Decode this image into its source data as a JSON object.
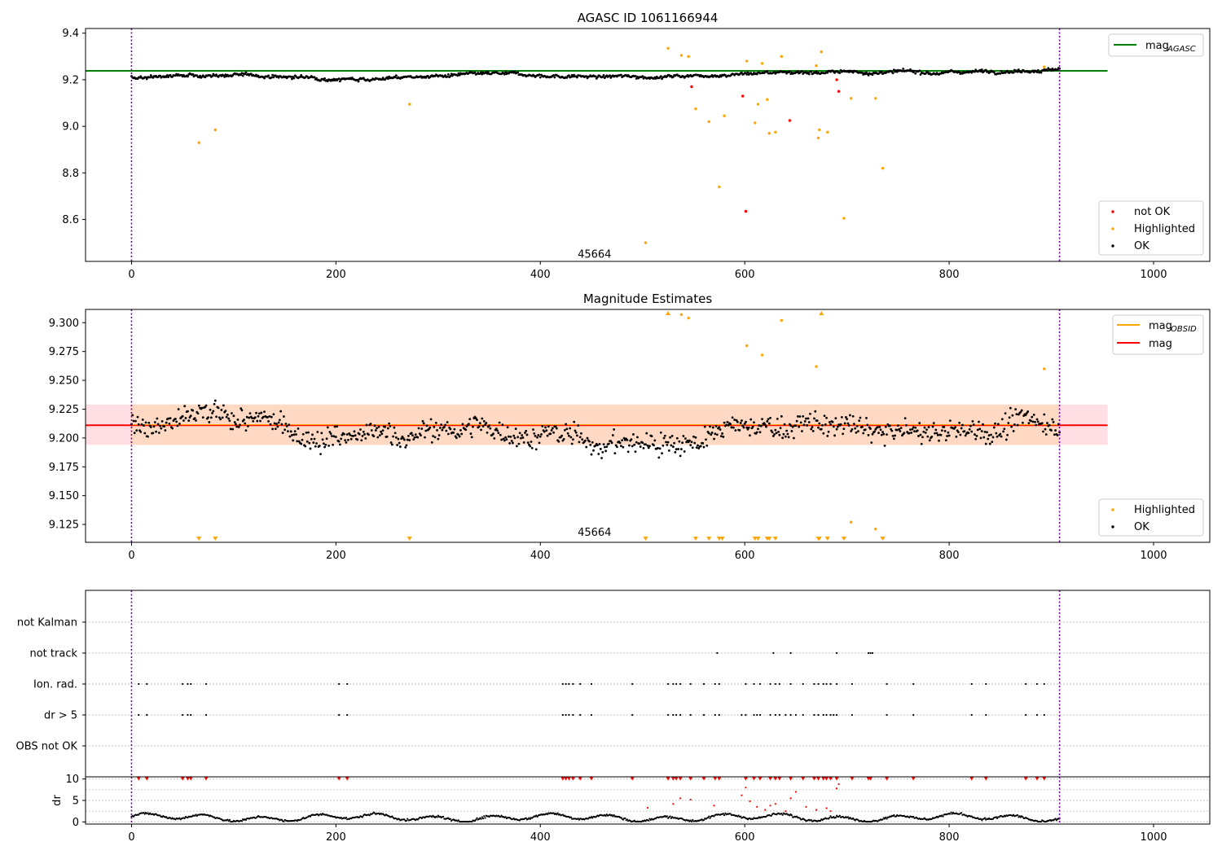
{
  "figure_title": "AGASC ID 1061166944",
  "chart_data": [
    {
      "id": "panel1",
      "type": "scatter",
      "title": "AGASC ID 1061166944",
      "xlim": [
        -45,
        1055
      ],
      "ylim": [
        8.42,
        9.42
      ],
      "xticks": [
        0,
        200,
        400,
        600,
        800,
        1000
      ],
      "yticks": [
        "8.6",
        "8.8",
        "9.0",
        "9.2",
        "9.4"
      ],
      "annotation": {
        "text": "45664",
        "x": 453,
        "y": 8.45
      },
      "vlines": [
        0,
        908
      ],
      "hlines": [
        {
          "y": 9.238,
          "x0": -45,
          "x1": 955,
          "color": "#008000"
        }
      ],
      "legend_lines": [
        {
          "label_main": "mag",
          "label_sub": "AGASC",
          "color": "#008000"
        }
      ],
      "legend_points": [
        {
          "label": "not OK",
          "color": "#ff0000"
        },
        {
          "label": "Highlighted",
          "color": "#ffa500"
        },
        {
          "label": "OK",
          "color": "#000000"
        }
      ],
      "highlighted": [
        [
          66,
          8.93
        ],
        [
          82,
          8.985
        ],
        [
          272,
          9.095
        ],
        [
          503,
          8.5
        ],
        [
          525,
          9.335
        ],
        [
          538,
          9.305
        ],
        [
          545,
          9.3
        ],
        [
          552,
          9.075
        ],
        [
          565,
          9.02
        ],
        [
          575,
          8.74
        ],
        [
          580,
          9.045
        ],
        [
          602,
          9.28
        ],
        [
          610,
          9.015
        ],
        [
          613,
          9.095
        ],
        [
          617,
          9.27
        ],
        [
          622,
          9.115
        ],
        [
          624,
          8.97
        ],
        [
          630,
          8.975
        ],
        [
          636,
          9.3
        ],
        [
          670,
          9.26
        ],
        [
          672,
          8.95
        ],
        [
          673,
          8.985
        ],
        [
          675,
          9.32
        ],
        [
          681,
          8.975
        ],
        [
          697,
          8.605
        ],
        [
          704,
          9.12
        ],
        [
          728,
          9.12
        ],
        [
          735,
          8.82
        ],
        [
          893,
          9.255
        ]
      ],
      "not_ok": [
        [
          548,
          9.17
        ],
        [
          598,
          9.13
        ],
        [
          601,
          8.635
        ],
        [
          644,
          9.025
        ],
        [
          690,
          9.2
        ],
        [
          692,
          9.15
        ]
      ],
      "ok_series": {
        "x_start": 0,
        "x_end": 908,
        "base": 9.205,
        "end": 9.238
      }
    },
    {
      "id": "panel2",
      "type": "scatter",
      "title": "Magnitude Estimates",
      "xlim": [
        -45,
        1055
      ],
      "ylim": [
        9.1095,
        9.3115
      ],
      "xticks": [
        0,
        200,
        400,
        600,
        800,
        1000
      ],
      "yticks": [
        "9.125",
        "9.150",
        "9.175",
        "9.200",
        "9.225",
        "9.250",
        "9.275",
        "9.300"
      ],
      "annotation": {
        "text": "45664",
        "x": 453,
        "y": 9.118
      },
      "vlines": [
        0,
        908
      ],
      "band": {
        "y0": 9.194,
        "y1": 9.229,
        "x0": -45,
        "x1": 955
      },
      "hlines": [
        {
          "y": 9.211,
          "x0": -45,
          "x1": 955,
          "color": "#ff0000"
        }
      ],
      "legend_lines": [
        {
          "label_main": "mag",
          "label_sub": "OBSID",
          "color": "#ffa500"
        },
        {
          "label_main": "mag",
          "label_sub": "",
          "color": "#ff0000"
        }
      ],
      "legend_points": [
        {
          "label": "Highlighted",
          "color": "#ffa500"
        },
        {
          "label": "OK",
          "color": "#000000"
        }
      ],
      "highlighted": [
        [
          538,
          9.307
        ],
        [
          545,
          9.304
        ],
        [
          602,
          9.28
        ],
        [
          617,
          9.272
        ],
        [
          636,
          9.302
        ],
        [
          670,
          9.262
        ],
        [
          704,
          9.127
        ],
        [
          728,
          9.121
        ],
        [
          893,
          9.26
        ]
      ],
      "markers_low": [
        66,
        82,
        272,
        503,
        552,
        565,
        575,
        578,
        610,
        613,
        622,
        624,
        630,
        672,
        673,
        681,
        697,
        735
      ],
      "markers_high": [
        525,
        675
      ],
      "ok_series": {
        "x_start": 0,
        "x_end": 908,
        "base": 9.205
      }
    },
    {
      "id": "panel3",
      "type": "event-flags",
      "xlim": [
        -45,
        1055
      ],
      "vlines": [
        0,
        908
      ],
      "rows": [
        "not Kalman",
        "not track",
        "Ion. rad.",
        "dr > 5",
        "OBS not OK"
      ],
      "events": {
        "not track": [
          573,
          628,
          645,
          690,
          721,
          723,
          725
        ],
        "Ion. rad.": [
          7,
          15,
          50,
          55,
          58,
          73,
          203,
          211,
          422,
          425,
          428,
          432,
          439,
          450,
          490,
          525,
          530,
          533,
          537,
          547,
          560,
          571,
          575,
          601,
          609,
          615,
          625,
          630,
          634,
          645,
          657,
          668,
          672,
          677,
          680,
          684,
          690,
          705,
          739,
          765,
          822,
          836,
          875,
          886,
          893
        ],
        "dr > 5": [
          7,
          15,
          50,
          55,
          58,
          73,
          203,
          211,
          422,
          425,
          428,
          432,
          439,
          450,
          490,
          525,
          530,
          533,
          537,
          547,
          560,
          571,
          575,
          597,
          601,
          609,
          612,
          615,
          625,
          630,
          634,
          640,
          645,
          650,
          657,
          668,
          672,
          677,
          680,
          684,
          687,
          690,
          705,
          739,
          765,
          822,
          836,
          875,
          886,
          893
        ]
      }
    },
    {
      "id": "panel4",
      "type": "scatter",
      "xlim": [
        -45,
        1055
      ],
      "ylim": [
        -0.5,
        10.5
      ],
      "xticks": [
        0,
        200,
        400,
        600,
        800,
        1000
      ],
      "yticks": [
        "0",
        "5",
        "10"
      ],
      "ylabel": "dr",
      "vlines": [
        0,
        908
      ],
      "capped_at_10": [
        7,
        15,
        50,
        55,
        58,
        73,
        203,
        211,
        422,
        425,
        428,
        432,
        439,
        450,
        490,
        525,
        530,
        533,
        537,
        547,
        560,
        571,
        575,
        601,
        609,
        615,
        625,
        630,
        634,
        645,
        657,
        668,
        672,
        677,
        680,
        684,
        690,
        705,
        721,
        723,
        739,
        765,
        822,
        836,
        875,
        886,
        893
      ],
      "outliers": [
        [
          505,
          3.3
        ],
        [
          530,
          4.2
        ],
        [
          537,
          5.5
        ],
        [
          547,
          5.2
        ],
        [
          570,
          3.8
        ],
        [
          597,
          6.2
        ],
        [
          601,
          8.0
        ],
        [
          605,
          4.8
        ],
        [
          612,
          3.5
        ],
        [
          620,
          2.8
        ],
        [
          625,
          3.8
        ],
        [
          630,
          4.2
        ],
        [
          640,
          2.5
        ],
        [
          645,
          5.5
        ],
        [
          650,
          7.0
        ],
        [
          660,
          3.5
        ],
        [
          670,
          2.8
        ],
        [
          680,
          3.2
        ],
        [
          684,
          2.5
        ],
        [
          690,
          7.8
        ],
        [
          692,
          8.8
        ]
      ],
      "ok_series": {
        "x_start": 0,
        "x_end": 908,
        "base": 1.0
      }
    }
  ]
}
